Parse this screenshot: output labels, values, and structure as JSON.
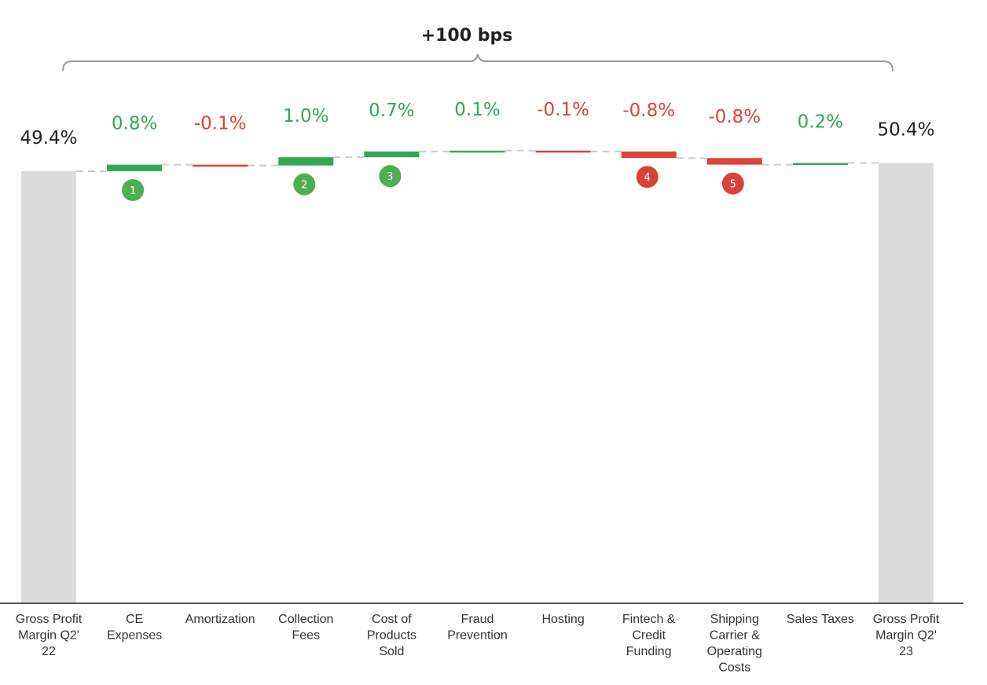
{
  "chart_data": {
    "type": "bar",
    "subtype": "waterfall",
    "title": "+100 bps",
    "unit": "%",
    "start": {
      "category": "Gross Profit Margin Q2' 22",
      "value": 49.4,
      "label": "49.4%"
    },
    "end": {
      "category": "Gross Profit Margin Q2' 23",
      "value": 50.4,
      "label": "50.4%"
    },
    "categories": [
      "Gross Profit Margin Q2' 22",
      "CE Expenses",
      "Amortization",
      "Collection Fees",
      "Cost of Products Sold",
      "Fraud Prevention",
      "Hosting",
      "Fintech & Credit Funding",
      "Shipping Carrier & Operating Costs",
      "Sales Taxes",
      "Gross Profit Margin Q2' 23"
    ],
    "steps": [
      {
        "category": "CE Expenses",
        "value": 0.8,
        "label": "0.8%",
        "badge": "1"
      },
      {
        "category": "Amortization",
        "value": -0.1,
        "label": "-0.1%",
        "badge": ""
      },
      {
        "category": "Collection Fees",
        "value": 1.0,
        "label": "1.0%",
        "badge": "2"
      },
      {
        "category": "Cost of Products Sold",
        "value": 0.7,
        "label": "0.7%",
        "badge": "3"
      },
      {
        "category": "Fraud Prevention",
        "value": 0.1,
        "label": "0.1%",
        "badge": ""
      },
      {
        "category": "Hosting",
        "value": -0.1,
        "label": "-0.1%",
        "badge": ""
      },
      {
        "category": "Fintech & Credit Funding",
        "value": -0.8,
        "label": "-0.8%",
        "badge": "4"
      },
      {
        "category": "Shipping Carrier & Operating Costs",
        "value": -0.8,
        "label": "-0.8%",
        "badge": "5"
      },
      {
        "category": "Sales Taxes",
        "value": 0.2,
        "label": "0.2%",
        "badge": ""
      }
    ],
    "tick_lines": [
      [
        "Gross Profit",
        "Margin Q2'",
        "22"
      ],
      [
        "CE",
        "Expenses"
      ],
      [
        "Amortization"
      ],
      [
        "Collection",
        "Fees"
      ],
      [
        "Cost of",
        "Products",
        "Sold"
      ],
      [
        "Fraud",
        "Prevention"
      ],
      [
        "Hosting"
      ],
      [
        "Fintech &",
        "Credit",
        "Funding"
      ],
      [
        "Shipping",
        "Carrier &",
        "Operating",
        "Costs"
      ],
      [
        "Sales Taxes"
      ],
      [
        "Gross Profit",
        "Margin Q2'",
        "23"
      ]
    ],
    "colors": {
      "positive": "#34a853",
      "negative": "#db4437",
      "total": "#dcdcdc",
      "badge_positive": "#4caf50",
      "badge_negative": "#d9423a",
      "connector": "#cccccc",
      "axis": "#555555",
      "bracket": "#999999"
    },
    "grid": false,
    "legend": "none"
  }
}
